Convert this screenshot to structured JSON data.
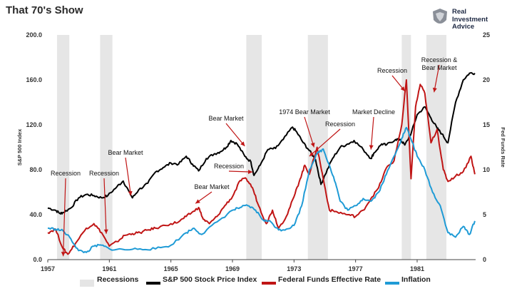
{
  "page": {
    "title": "That 70's Show",
    "brand": [
      "Real",
      "Investment",
      "Advice"
    ]
  },
  "chart_data": {
    "type": "line",
    "title": "That 70's Show",
    "x_ticks": [
      "1957",
      "1961",
      "1965",
      "1969",
      "1973",
      "1977",
      "1981"
    ],
    "xlim": [
      1957,
      1984.8
    ],
    "y_left": {
      "label": "S&P 500 Index",
      "ticks": [
        "0.0",
        "40.0",
        "80.0",
        "120.0",
        "160.0",
        "200.0"
      ],
      "lim": [
        0,
        200
      ]
    },
    "y_right": {
      "label": "Fed Funds Rate",
      "ticks": [
        "0",
        "5",
        "10",
        "15",
        "20",
        "25"
      ],
      "lim": [
        0,
        25
      ]
    },
    "grid": false,
    "legend_position": "bottom",
    "recessions": [
      [
        1957.6,
        1958.4
      ],
      [
        1960.4,
        1961.2
      ],
      [
        1969.9,
        1970.9
      ],
      [
        1973.9,
        1975.2
      ],
      [
        1980.0,
        1980.6
      ],
      [
        1981.6,
        1982.9
      ]
    ],
    "series": [
      {
        "name": "S&P 500 Stock Price Index",
        "axis": "left",
        "color": "#000000",
        "x": [
          1957.0,
          1957.5,
          1957.8,
          1958.0,
          1958.5,
          1959.0,
          1959.5,
          1960.0,
          1960.5,
          1960.9,
          1961.5,
          1961.9,
          1962.3,
          1962.5,
          1962.9,
          1963.5,
          1964.0,
          1964.5,
          1965.0,
          1965.5,
          1966.0,
          1966.4,
          1966.8,
          1967.3,
          1967.8,
          1968.2,
          1968.6,
          1968.9,
          1969.3,
          1969.8,
          1970.2,
          1970.4,
          1970.8,
          1971.3,
          1971.8,
          1972.3,
          1972.9,
          1973.2,
          1973.6,
          1974.0,
          1974.4,
          1974.75,
          1975.0,
          1975.5,
          1976.0,
          1976.5,
          1976.9,
          1977.5,
          1978.0,
          1978.2,
          1978.7,
          1979.0,
          1979.6,
          1979.9,
          1980.2,
          1980.6,
          1981.0,
          1981.5,
          1981.9,
          1982.3,
          1982.6,
          1983.0,
          1983.5,
          1984.0,
          1984.4,
          1984.75
        ],
        "values": [
          46,
          44,
          41,
          42,
          46,
          55,
          58,
          57,
          55,
          57,
          65,
          70,
          60,
          55,
          62,
          68,
          78,
          82,
          86,
          85,
          92,
          85,
          79,
          90,
          94,
          96,
          100,
          106,
          103,
          92,
          87,
          75,
          84,
          98,
          99,
          107,
          118,
          113,
          104,
          97,
          89,
          67,
          75,
          90,
          100,
          103,
          106,
          98,
          90,
          95,
          103,
          102,
          107,
          107,
          102,
          112,
          129,
          136,
          126,
          117,
          112,
          104,
          140,
          160,
          166,
          166
        ]
      },
      {
        "name": "Federal Funds Effective Rate",
        "axis": "right",
        "color": "#c01515",
        "x": [
          1957.0,
          1957.5,
          1958.0,
          1958.3,
          1958.8,
          1959.5,
          1960.0,
          1960.5,
          1961.0,
          1961.5,
          1962.0,
          1962.5,
          1963.0,
          1963.5,
          1964.0,
          1965.0,
          1965.5,
          1966.0,
          1966.5,
          1966.8,
          1967.1,
          1967.5,
          1968.0,
          1968.5,
          1969.0,
          1969.5,
          1969.9,
          1970.3,
          1970.7,
          1971.2,
          1971.6,
          1972.0,
          1972.5,
          1973.0,
          1973.4,
          1973.7,
          1974.0,
          1974.5,
          1974.9,
          1975.3,
          1975.8,
          1976.5,
          1977.0,
          1977.5,
          1978.0,
          1978.5,
          1979.0,
          1979.5,
          1980.0,
          1980.3,
          1980.6,
          1980.9,
          1981.2,
          1981.5,
          1981.9,
          1982.3,
          1982.7,
          1983.0,
          1983.5,
          1984.0,
          1984.5,
          1984.75
        ],
        "values": [
          3.0,
          3.4,
          1.2,
          0.6,
          1.8,
          3.5,
          4.0,
          3.0,
          1.5,
          2.0,
          2.7,
          2.9,
          3.0,
          3.3,
          3.5,
          4.0,
          4.2,
          4.8,
          5.4,
          5.8,
          4.5,
          4.0,
          4.8,
          6.0,
          7.0,
          8.8,
          9.0,
          8.0,
          6.0,
          4.0,
          5.5,
          3.5,
          4.8,
          7.0,
          9.0,
          10.5,
          9.5,
          12.5,
          9.0,
          5.5,
          5.3,
          5.0,
          4.8,
          5.5,
          6.8,
          8.0,
          10.2,
          11.0,
          15.0,
          20.0,
          9.0,
          17.0,
          19.5,
          18.5,
          13.0,
          14.5,
          10.0,
          8.7,
          9.3,
          9.8,
          11.5,
          9.5
        ]
      },
      {
        "name": "Inflation",
        "axis": "right",
        "color": "#1f9bd6",
        "x": [
          1957.0,
          1957.5,
          1958.0,
          1958.5,
          1959.0,
          1959.5,
          1960.0,
          1960.5,
          1961.0,
          1962.0,
          1963.0,
          1964.0,
          1965.0,
          1966.0,
          1966.5,
          1967.0,
          1968.0,
          1969.0,
          1969.5,
          1970.0,
          1970.5,
          1971.0,
          1971.5,
          1972.0,
          1972.5,
          1973.0,
          1973.5,
          1974.0,
          1974.5,
          1974.9,
          1975.3,
          1975.7,
          1976.0,
          1976.5,
          1977.0,
          1977.5,
          1978.0,
          1978.5,
          1979.0,
          1979.5,
          1980.0,
          1980.3,
          1980.7,
          1981.0,
          1981.5,
          1982.0,
          1982.5,
          1983.0,
          1983.5,
          1984.0,
          1984.4,
          1984.75
        ],
        "values": [
          3.5,
          3.4,
          3.2,
          2.3,
          1.0,
          0.8,
          1.5,
          1.6,
          1.2,
          1.1,
          1.2,
          1.2,
          1.6,
          3.0,
          3.5,
          2.8,
          4.2,
          5.5,
          5.8,
          6.0,
          5.5,
          4.4,
          4.2,
          3.3,
          3.4,
          3.8,
          6.0,
          10.0,
          11.8,
          12.3,
          10.5,
          8.5,
          6.5,
          5.5,
          6.0,
          6.8,
          6.5,
          7.5,
          9.5,
          11.5,
          13.5,
          14.7,
          13.0,
          11.5,
          10.0,
          7.5,
          6.0,
          3.0,
          2.5,
          3.7,
          2.8,
          4.3
        ]
      }
    ],
    "annotations": [
      {
        "text": "Recession",
        "year": 1958.0,
        "yleft": 3,
        "pos": "left"
      },
      {
        "text": "Bear Market",
        "year": 1962.4,
        "yleft": 57,
        "pos": "left2"
      },
      {
        "text": "Recession",
        "year": 1960.8,
        "yleft": 30,
        "pos": "left3"
      },
      {
        "text": "Bear Market",
        "year": 1966.6,
        "yleft": 50,
        "pos": "mid"
      },
      {
        "text": "Bear Market",
        "year": 1969.8,
        "yleft": 101,
        "pos": "mid2"
      },
      {
        "text": "Recession",
        "year": 1970.6,
        "yleft": 63,
        "pos": "mid3"
      },
      {
        "text": "1974 Bear Market",
        "year": 1974.4,
        "yleft": 93,
        "pos": "mid4"
      },
      {
        "text": "Recession",
        "year": 1974.1,
        "yleft": 88,
        "pos": "mid5"
      },
      {
        "text": "Market Decline",
        "year": 1978.1,
        "yleft": 98,
        "pos": "mid6"
      },
      {
        "text": "Recession",
        "year": 1980.2,
        "yleft": 150,
        "pos": "right"
      },
      {
        "text": "Recession &",
        "year": 1982.1,
        "yleft": 149,
        "pos": "right2"
      },
      {
        "text": "Bear Market",
        "year": 1982.1,
        "yleft": 149,
        "pos": "right2b"
      }
    ]
  },
  "legend": [
    {
      "label": "Recessions",
      "color": "#e5e5e5"
    },
    {
      "label": "S&P 500 Stock Price Index",
      "color": "#000000"
    },
    {
      "label": "Federal Funds Effective Rate",
      "color": "#c01515"
    },
    {
      "label": "Inflation",
      "color": "#1f9bd6"
    }
  ]
}
